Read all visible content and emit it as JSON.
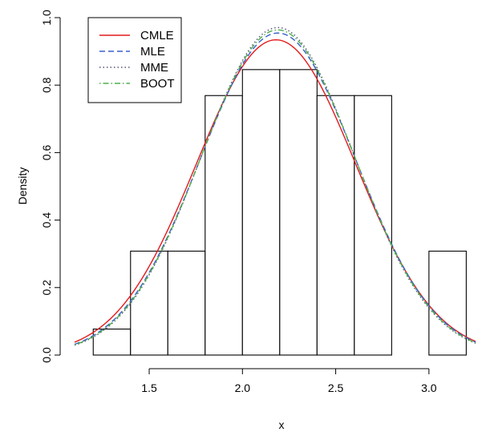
{
  "chart_data": {
    "type": "bar",
    "xlabel": "x",
    "ylabel": "Density",
    "xlim": [
      1.1,
      3.25
    ],
    "ylim": [
      0.0,
      1.0
    ],
    "x_ticks": [
      "1.5",
      "2.0",
      "2.5",
      "3.0"
    ],
    "x_tick_values": [
      1.5,
      2.0,
      2.5,
      3.0
    ],
    "y_ticks": [
      "0.0",
      "0.2",
      "0.4",
      "0.6",
      "0.8",
      "1.0"
    ],
    "y_tick_values": [
      0.0,
      0.2,
      0.4,
      0.6,
      0.8,
      1.0
    ],
    "histogram": {
      "bin_edges": [
        1.2,
        1.4,
        1.6,
        1.8,
        2.0,
        2.2,
        2.4,
        2.6,
        2.8,
        3.0,
        3.2
      ],
      "densities": [
        0.077,
        0.308,
        0.308,
        0.769,
        0.846,
        0.846,
        0.769,
        0.769,
        0.0,
        0.308
      ]
    },
    "series": [
      {
        "name": "CMLE",
        "mean": 2.18,
        "sd": 0.427,
        "color": "#e41a1c",
        "dash": "solid"
      },
      {
        "name": "MLE",
        "mean": 2.19,
        "sd": 0.418,
        "color": "#3a5fcd",
        "dash": "dashed"
      },
      {
        "name": "MME",
        "mean": 2.19,
        "sd": 0.411,
        "color": "#555577",
        "dash": "dotted"
      },
      {
        "name": "BOOT",
        "mean": 2.19,
        "sd": 0.414,
        "color": "#4daf4a",
        "dash": "dotdash"
      }
    ],
    "legend_position": "top-left",
    "grid": false
  }
}
